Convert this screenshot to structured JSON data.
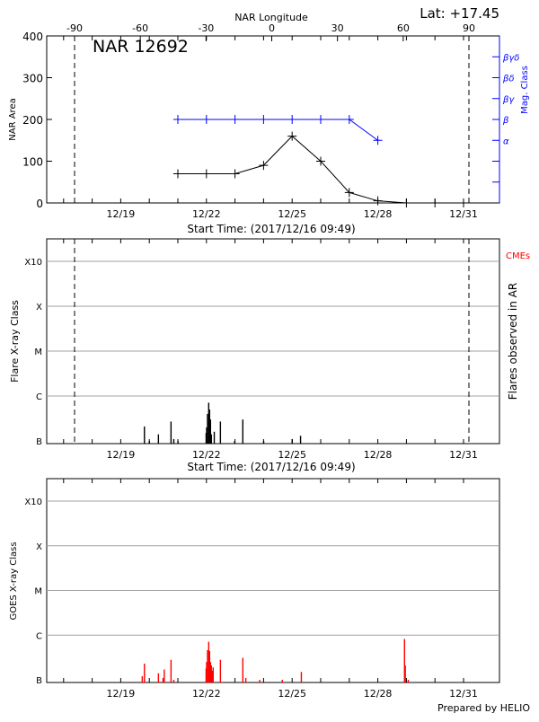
{
  "header": {
    "lat_label": "Lat: +17.45",
    "region_title": "NAR 12692"
  },
  "footer": {
    "credit": "Prepared by HELIO"
  },
  "chart_data": [
    {
      "type": "line",
      "title": "NAR 12692",
      "xlabel": "Start Time: (2017/12/16 09:49)",
      "x2label": "NAR Longitude",
      "ylabel": "NAR Area",
      "y2label": "Mag. Class",
      "xlim": [
        "2017-12-16T09:49",
        "2018-01-01T06:00"
      ],
      "x_tick_labels": [
        "12/19",
        "12/22",
        "12/25",
        "12/28",
        "12/31"
      ],
      "x_tick_dates": [
        "2017-12-19",
        "2017-12-22",
        "2017-12-25",
        "2017-12-28",
        "2017-12-31"
      ],
      "x2_ticks": [
        -90,
        -60,
        -30,
        0,
        30,
        60,
        90
      ],
      "limb_longitudes": [
        -90,
        90
      ],
      "ylim": [
        0,
        400
      ],
      "y_ticks": [
        0,
        100,
        200,
        300,
        400
      ],
      "y2_ticks": [
        50,
        100,
        150,
        200,
        250,
        300,
        350
      ],
      "y2_tick_labels": {
        "150": "α",
        "200": "β",
        "250": "βγ",
        "300": "βδ",
        "350": "βγδ"
      },
      "mag_color": "#0000ff",
      "series": [
        {
          "x": [
            "2017-12-21",
            "2017-12-22",
            "2017-12-23",
            "2017-12-24",
            "2017-12-25",
            "2017-12-26",
            "2017-12-27",
            "2017-12-28",
            "2017-12-29",
            "2017-12-30",
            "2017-12-31"
          ],
          "values": [
            70,
            70,
            70,
            90,
            160,
            100,
            25,
            5,
            0,
            0,
            0
          ],
          "color": "#000000"
        },
        {
          "x": [
            "2017-12-21",
            "2017-12-22",
            "2017-12-23",
            "2017-12-24",
            "2017-12-25",
            "2017-12-26",
            "2017-12-27",
            "2017-12-28"
          ],
          "values": [
            200,
            200,
            200,
            200,
            200,
            200,
            200,
            150
          ],
          "color": "#0000ff"
        }
      ]
    },
    {
      "type": "bar",
      "xlabel": "Start Time: (2017/12/16 09:49)",
      "ylabel": "Flare X-ray Class",
      "y2label": "Flares observed in AR",
      "legend": "CMEs",
      "legend_color": "#ff0000",
      "y_ticks": [
        "B",
        "C",
        "M",
        "X",
        "X10"
      ],
      "grid": true,
      "bar_color": "#000000",
      "flares": [
        [
          "2017-12-19T19:50",
          "B2.1"
        ],
        [
          "2017-12-20T00:00",
          "B1.0"
        ],
        [
          "2017-12-20T07:35",
          "B1.4"
        ],
        [
          "2017-12-20T18:10",
          "B2.7"
        ],
        [
          "2017-12-20T20:30",
          "B1.1"
        ],
        [
          "2017-12-21T00:00",
          "B1.0"
        ],
        [
          "2017-12-21T23:40",
          "B1.5"
        ],
        [
          "2017-12-22T00:05",
          "B2.0"
        ],
        [
          "2017-12-22T00:50",
          "B4.0"
        ],
        [
          "2017-12-22T01:50",
          "B7.1"
        ],
        [
          "2017-12-22T02:35",
          "B5.0"
        ],
        [
          "2017-12-22T03:20",
          "B3.0"
        ],
        [
          "2017-12-22T04:05",
          "B1.4"
        ],
        [
          "2017-12-22T06:30",
          "B1.6"
        ],
        [
          "2017-12-22T11:40",
          "B2.7"
        ],
        [
          "2017-12-22T23:40",
          "B1.0"
        ],
        [
          "2017-12-23T06:30",
          "B3.0"
        ],
        [
          "2017-12-24T00:00",
          "B1.0"
        ],
        [
          "2017-12-25T00:00",
          "B1.1"
        ],
        [
          "2017-12-25T07:00",
          "B1.3"
        ]
      ]
    },
    {
      "type": "bar",
      "ylabel": "GOES X-ray Class",
      "y_ticks": [
        "B",
        "C",
        "M",
        "X",
        "X10"
      ],
      "grid": true,
      "bar_color": "#ff0000",
      "flares": [
        [
          "2017-12-19T18:00",
          "B1.2"
        ],
        [
          "2017-12-19T19:50",
          "B2.3"
        ],
        [
          "2017-12-20T07:35",
          "B1.4"
        ],
        [
          "2017-12-20T11:30",
          "B1.1"
        ],
        [
          "2017-12-20T12:30",
          "B1.7"
        ],
        [
          "2017-12-20T18:10",
          "B2.8"
        ],
        [
          "2017-12-20T20:30",
          "B1.0"
        ],
        [
          "2017-12-21T23:40",
          "B1.8"
        ],
        [
          "2017-12-22T00:05",
          "B2.5"
        ],
        [
          "2017-12-22T00:50",
          "B4.6"
        ],
        [
          "2017-12-22T01:50",
          "B7.1"
        ],
        [
          "2017-12-22T02:35",
          "B4.4"
        ],
        [
          "2017-12-22T03:20",
          "B2.5"
        ],
        [
          "2017-12-22T04:05",
          "B2.1"
        ],
        [
          "2017-12-22T04:50",
          "B1.6"
        ],
        [
          "2017-12-22T05:35",
          "B1.9"
        ],
        [
          "2017-12-22T11:40",
          "B2.8"
        ],
        [
          "2017-12-23T06:30",
          "B3.1"
        ],
        [
          "2017-12-23T09:00",
          "B1.1"
        ],
        [
          "2017-12-23T20:40",
          "B1.0"
        ],
        [
          "2017-12-24T15:40",
          "B1.0"
        ],
        [
          "2017-12-25T07:40",
          "B1.5"
        ],
        [
          "2017-12-28T22:20",
          "B8.2"
        ],
        [
          "2017-12-28T23:00",
          "B2.1"
        ],
        [
          "2017-12-29T01:30",
          "B1.0"
        ]
      ]
    }
  ]
}
